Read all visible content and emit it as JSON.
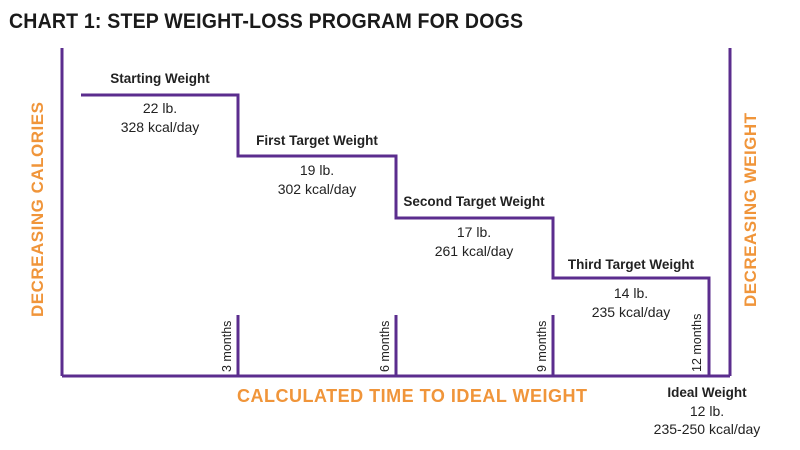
{
  "title": "CHART 1: STEP WEIGHT-LOSS PROGRAM FOR DOGS",
  "left_axis_label": "DECREASING CALORIES",
  "right_axis_label": "DECREASING WEIGHT",
  "x_axis_label": "CALCULATED TIME TO IDEAL WEIGHT",
  "steps": [
    {
      "title": "Starting Weight",
      "weight": "22 lb.",
      "calories": "328 kcal/day"
    },
    {
      "title": "First Target Weight",
      "weight": "19 lb.",
      "calories": "302 kcal/day"
    },
    {
      "title": "Second Target Weight",
      "weight": "17 lb.",
      "calories": "261 kcal/day"
    },
    {
      "title": "Third Target Weight",
      "weight": "14 lb.",
      "calories": "235 kcal/day"
    }
  ],
  "ideal": {
    "title": "Ideal Weight",
    "weight": "12 lb.",
    "calories": "235-250 kcal/day"
  },
  "months": [
    "3 months",
    "6 months",
    "9 months",
    "12 months"
  ],
  "colors": {
    "line": "#5b2d8e",
    "accent": "#f0953a",
    "text": "#222222"
  }
}
